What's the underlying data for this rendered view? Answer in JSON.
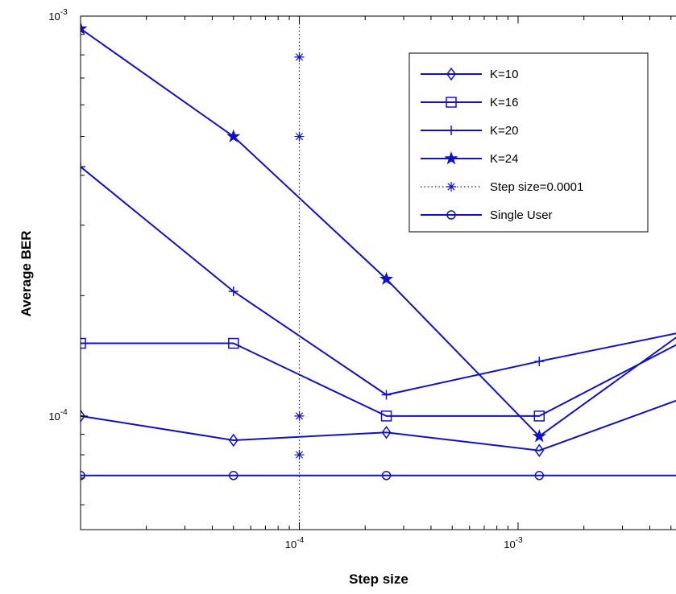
{
  "chart_data": {
    "type": "line",
    "xlabel": "Step size",
    "ylabel": "Average BER",
    "x_scale": "log",
    "y_scale": "log",
    "xlim": [
      1e-05,
      0.0063
    ],
    "ylim": [
      5.2e-05,
      0.001
    ],
    "x_tick_labels": [
      {
        "value": 0.0001,
        "base": "10",
        "exp": "-4"
      },
      {
        "value": 0.001,
        "base": "10",
        "exp": "-3"
      }
    ],
    "y_tick_labels": [
      {
        "value": 0.0001,
        "base": "10",
        "exp": "-4"
      },
      {
        "value": 0.001,
        "base": "10",
        "exp": "-3"
      }
    ],
    "grid": false,
    "legend_position": "top-right",
    "color": "#1010cc",
    "x": [
      1e-05,
      5e-05,
      0.00025,
      0.00125,
      0.00625
    ],
    "series": [
      {
        "name": "K=10",
        "marker": "diamond",
        "values": [
          0.0001,
          8.7e-05,
          9.1e-05,
          8.2e-05,
          0.000113
        ]
      },
      {
        "name": "K=16",
        "marker": "square",
        "values": [
          0.000152,
          0.000152,
          0.0001,
          0.0001,
          0.000158
        ]
      },
      {
        "name": "K=20",
        "marker": "plus",
        "values": [
          0.00042,
          0.000205,
          0.000113,
          0.000137,
          0.000164
        ]
      },
      {
        "name": "K=24",
        "marker": "star",
        "values": [
          0.00093,
          0.0005,
          0.00022,
          8.9e-05,
          0.000168
        ]
      },
      {
        "name": "Step size=0.0001",
        "marker": "asterisk",
        "dotted": true,
        "x": [
          0.0001,
          0.0001,
          0.0001,
          0.0001
        ],
        "values": [
          0.00079,
          0.0005,
          0.0001,
          8e-05
        ]
      },
      {
        "name": "Single User",
        "marker": "circle",
        "values": [
          7.1e-05,
          7.1e-05,
          7.1e-05,
          7.1e-05,
          7.1e-05
        ]
      }
    ]
  }
}
